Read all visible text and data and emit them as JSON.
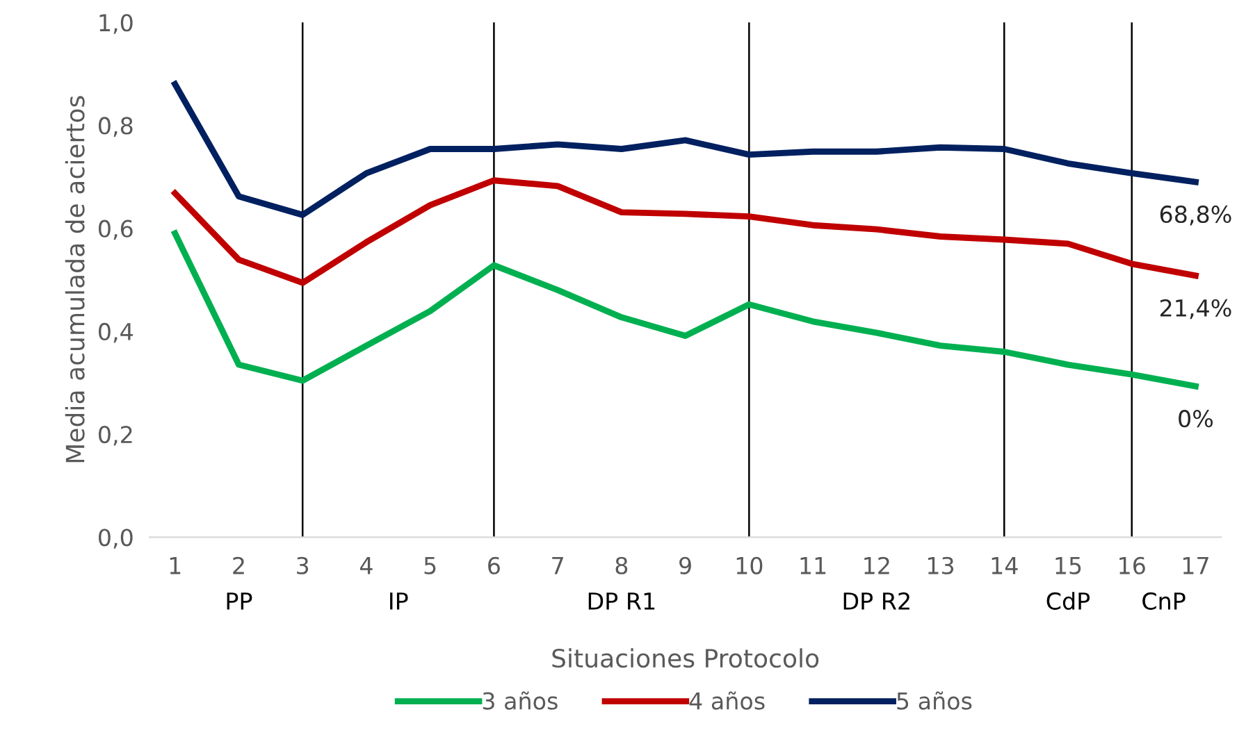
{
  "chart_data": {
    "type": "line",
    "xlabel": "Situaciones Protocolo",
    "ylabel": "Media acumulada de aciertos",
    "x": [
      1,
      2,
      3,
      4,
      5,
      6,
      7,
      8,
      9,
      10,
      11,
      12,
      13,
      14,
      15,
      16,
      17
    ],
    "series": [
      {
        "name": "3 años",
        "color": "#00b050",
        "values": [
          0.59,
          0.335,
          0.304,
          0.372,
          0.439,
          0.528,
          0.48,
          0.427,
          0.391,
          0.452,
          0.419,
          0.397,
          0.372,
          0.36,
          0.335,
          0.316,
          0.293
        ]
      },
      {
        "name": "4 años",
        "color": "#c00000",
        "values": [
          0.668,
          0.539,
          0.494,
          0.573,
          0.645,
          0.693,
          0.682,
          0.631,
          0.628,
          0.623,
          0.606,
          0.598,
          0.584,
          0.578,
          0.57,
          0.531,
          0.508
        ]
      },
      {
        "name": "5 años",
        "color": "#002060",
        "values": [
          0.88,
          0.662,
          0.626,
          0.707,
          0.754,
          0.754,
          0.763,
          0.754,
          0.771,
          0.743,
          0.749,
          0.749,
          0.757,
          0.754,
          0.726,
          0.707,
          0.69
        ]
      }
    ],
    "xlim": [
      0.6,
      17.4
    ],
    "xticks": [
      1,
      2,
      3,
      4,
      5,
      6,
      7,
      8,
      9,
      10,
      11,
      12,
      13,
      14,
      15,
      16,
      17
    ],
    "ylim": [
      0,
      1.0
    ],
    "yticks": [
      {
        "value": 0,
        "label": "0,0"
      },
      {
        "value": 0.2,
        "label": "0,2"
      },
      {
        "value": 0.4,
        "label": "0,4"
      },
      {
        "value": 0.6,
        "label": "0,6"
      },
      {
        "value": 0.8,
        "label": "0,8"
      },
      {
        "value": 1.0,
        "label": "1,0"
      }
    ],
    "ref_lines": [
      {
        "axis": "x",
        "value": 3,
        "color": "#000000"
      },
      {
        "axis": "x",
        "value": 6,
        "color": "#000000"
      },
      {
        "axis": "x",
        "value": 10,
        "color": "#000000"
      },
      {
        "axis": "x",
        "value": 14,
        "color": "#000000"
      },
      {
        "axis": "x",
        "value": 16,
        "color": "#000000"
      }
    ],
    "annotations": [
      "0%",
      "21,4%",
      "68,8%",
      "PP",
      "IP",
      "DP R1",
      "DP R2",
      "CdP",
      "CnP"
    ],
    "grid": false,
    "legend": "bottom",
    "marker": "none",
    "line_style": "solid"
  }
}
